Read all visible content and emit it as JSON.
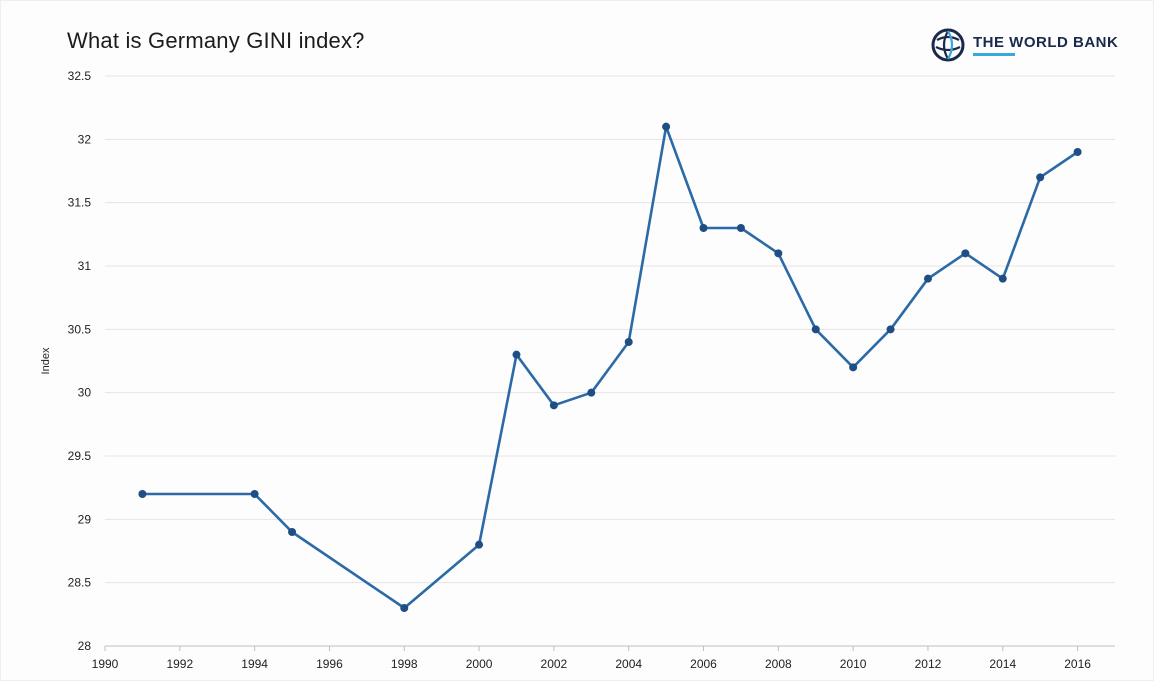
{
  "header": {
    "title": "What is Germany GINI index?",
    "brand": "THE WORLD BANK"
  },
  "colors": {
    "line": "#2b6aa6",
    "marker": "#1f4e84",
    "grid": "#e9e2e2",
    "axis": "#bfbfbf",
    "brand": "#1b2a4a",
    "brand_accent": "#3aa7e0"
  },
  "icons": {
    "logo": "globe-icon"
  },
  "chart_data": {
    "type": "line",
    "title": "What is Germany GINI index?",
    "xlabel": "",
    "ylabel": "Index",
    "xlim": [
      1990,
      2017
    ],
    "ylim": [
      28,
      32.5
    ],
    "x_ticks": [
      1990,
      1992,
      1994,
      1996,
      1998,
      2000,
      2002,
      2004,
      2006,
      2008,
      2010,
      2012,
      2014,
      2016
    ],
    "y_ticks": [
      28,
      28.5,
      29,
      29.5,
      30,
      30.5,
      31,
      31.5,
      32,
      32.5
    ],
    "y_tick_labels": [
      "28",
      "28.5",
      "29",
      "29.5",
      "30",
      "30.5",
      "31",
      "31.5",
      "32",
      "32.5"
    ],
    "grid": true,
    "legend": "none",
    "series": [
      {
        "x": [
          1991,
          1994,
          1995,
          1998,
          2000,
          2001,
          2002,
          2003,
          2004,
          2005,
          2006,
          2007,
          2008,
          2009,
          2010,
          2011,
          2012,
          2013,
          2014,
          2015,
          2016
        ],
        "values": [
          29.2,
          29.2,
          28.9,
          28.3,
          28.8,
          30.3,
          29.9,
          30.0,
          30.4,
          32.1,
          31.3,
          31.3,
          31.1,
          30.5,
          30.2,
          30.5,
          30.9,
          31.1,
          30.9,
          31.7,
          31.9
        ]
      }
    ]
  }
}
